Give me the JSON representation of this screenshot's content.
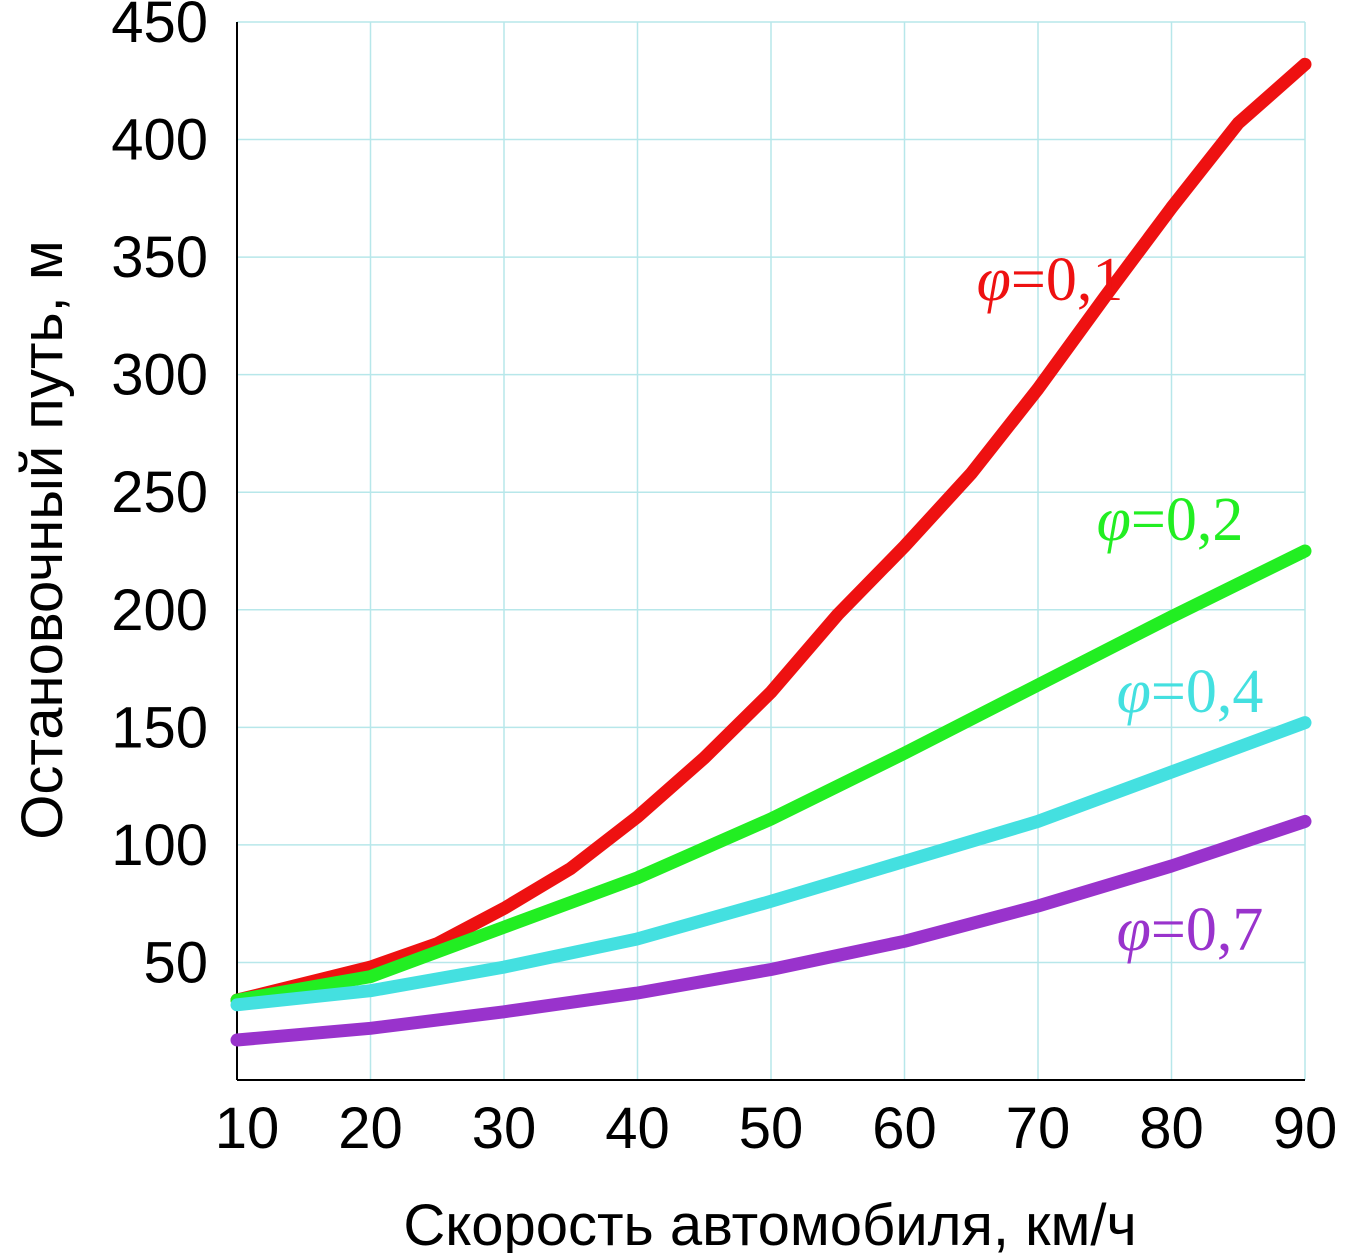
{
  "chart_data": {
    "type": "line",
    "xlabel": "Скорость автомобиля, км/ч",
    "ylabel": "Остановочный путь, м",
    "xlim": [
      10,
      90
    ],
    "ylim": [
      0,
      450
    ],
    "x_ticks": [
      10,
      20,
      30,
      40,
      50,
      60,
      70,
      80,
      90
    ],
    "y_ticks": [
      50,
      100,
      150,
      200,
      250,
      300,
      350,
      400,
      450
    ],
    "grid": true,
    "grid_color": "#b7e7ea",
    "series": [
      {
        "name": "φ=0,1",
        "color": "#ee1111",
        "label_position": "upper-right",
        "x": [
          10,
          20,
          25,
          30,
          35,
          40,
          45,
          50,
          55,
          60,
          65,
          70,
          75,
          80,
          85,
          90
        ],
        "y": [
          34,
          48,
          58,
          73,
          90,
          112,
          137,
          165,
          198,
          227,
          258,
          294,
          333,
          371,
          407,
          432
        ]
      },
      {
        "name": "φ=0,2",
        "color": "#22ee22",
        "label_position": "right",
        "x": [
          10,
          20,
          30,
          40,
          50,
          60,
          70,
          80,
          90
        ],
        "y": [
          34,
          44,
          65,
          86,
          111,
          139,
          168,
          197,
          225
        ]
      },
      {
        "name": "φ=0,4",
        "color": "#44e0e0",
        "label_position": "right",
        "x": [
          10,
          20,
          30,
          40,
          50,
          60,
          70,
          80,
          90
        ],
        "y": [
          32,
          38,
          48,
          60,
          76,
          93,
          110,
          131,
          152
        ]
      },
      {
        "name": "φ=0,7",
        "color": "#9933cc",
        "label_position": "lower-right",
        "x": [
          10,
          20,
          30,
          40,
          50,
          60,
          70,
          80,
          90
        ],
        "y": [
          17,
          22,
          29,
          37,
          47,
          59,
          74,
          91,
          110
        ]
      }
    ]
  }
}
